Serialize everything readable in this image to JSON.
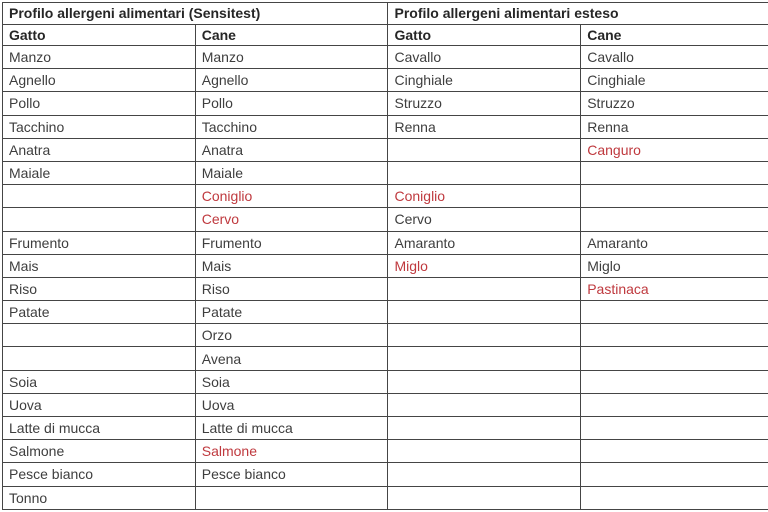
{
  "colors": {
    "red_text": "#bf393e",
    "body_text": "#3e3e3e",
    "header_text": "#262626",
    "border": "#454545",
    "background": "#ffffff"
  },
  "table": {
    "sections": [
      {
        "title": "Profilo allergeni alimentari (Sensitest)",
        "columns": [
          "Gatto",
          "Cane"
        ]
      },
      {
        "title": "Profilo allergeni alimentari esteso",
        "columns": [
          "Gatto",
          "Cane"
        ]
      }
    ],
    "rows": [
      {
        "cells": [
          {
            "text": "Manzo",
            "red": false
          },
          {
            "text": "Manzo",
            "red": false
          },
          {
            "text": "Cavallo",
            "red": false
          },
          {
            "text": "Cavallo",
            "red": false
          }
        ]
      },
      {
        "cells": [
          {
            "text": "Agnello",
            "red": false
          },
          {
            "text": "Agnello",
            "red": false
          },
          {
            "text": "Cinghiale",
            "red": false
          },
          {
            "text": "Cinghiale",
            "red": false
          }
        ]
      },
      {
        "cells": [
          {
            "text": "Pollo",
            "red": false
          },
          {
            "text": "Pollo",
            "red": false
          },
          {
            "text": "Struzzo",
            "red": false
          },
          {
            "text": "Struzzo",
            "red": false
          }
        ]
      },
      {
        "cells": [
          {
            "text": "Tacchino",
            "red": false
          },
          {
            "text": "Tacchino",
            "red": false
          },
          {
            "text": "Renna",
            "red": false
          },
          {
            "text": "Renna",
            "red": false
          }
        ]
      },
      {
        "cells": [
          {
            "text": "Anatra",
            "red": false
          },
          {
            "text": "Anatra",
            "red": false
          },
          {
            "text": "",
            "red": false
          },
          {
            "text": "Canguro",
            "red": true
          }
        ]
      },
      {
        "cells": [
          {
            "text": "Maiale",
            "red": false
          },
          {
            "text": "Maiale",
            "red": false
          },
          {
            "text": "",
            "red": false
          },
          {
            "text": "",
            "red": false
          }
        ]
      },
      {
        "cells": [
          {
            "text": "",
            "red": false
          },
          {
            "text": "Coniglio",
            "red": true
          },
          {
            "text": "Coniglio",
            "red": true
          },
          {
            "text": "",
            "red": false
          }
        ]
      },
      {
        "cells": [
          {
            "text": "",
            "red": false
          },
          {
            "text": "Cervo",
            "red": true
          },
          {
            "text": "Cervo",
            "red": false
          },
          {
            "text": "",
            "red": false
          }
        ]
      },
      {
        "cells": [
          {
            "text": "Frumento",
            "red": false
          },
          {
            "text": "Frumento",
            "red": false
          },
          {
            "text": "Amaranto",
            "red": false
          },
          {
            "text": "Amaranto",
            "red": false
          }
        ]
      },
      {
        "cells": [
          {
            "text": "Mais",
            "red": false
          },
          {
            "text": "Mais",
            "red": false
          },
          {
            "text": "Miglo",
            "red": true
          },
          {
            "text": "Miglo",
            "red": false
          }
        ]
      },
      {
        "cells": [
          {
            "text": "Riso",
            "red": false
          },
          {
            "text": "Riso",
            "red": false
          },
          {
            "text": "",
            "red": false
          },
          {
            "text": "Pastinaca",
            "red": true
          }
        ]
      },
      {
        "cells": [
          {
            "text": "Patate",
            "red": false
          },
          {
            "text": "Patate",
            "red": false
          },
          {
            "text": "",
            "red": false
          },
          {
            "text": "",
            "red": false
          }
        ]
      },
      {
        "cells": [
          {
            "text": "",
            "red": false
          },
          {
            "text": "Orzo",
            "red": false
          },
          {
            "text": "",
            "red": false
          },
          {
            "text": "",
            "red": false
          }
        ]
      },
      {
        "cells": [
          {
            "text": "",
            "red": false
          },
          {
            "text": "Avena",
            "red": false
          },
          {
            "text": "",
            "red": false
          },
          {
            "text": "",
            "red": false
          }
        ]
      },
      {
        "cells": [
          {
            "text": "Soia",
            "red": false
          },
          {
            "text": "Soia",
            "red": false
          },
          {
            "text": "",
            "red": false
          },
          {
            "text": "",
            "red": false
          }
        ]
      },
      {
        "cells": [
          {
            "text": "Uova",
            "red": false
          },
          {
            "text": "Uova",
            "red": false
          },
          {
            "text": "",
            "red": false
          },
          {
            "text": "",
            "red": false
          }
        ]
      },
      {
        "cells": [
          {
            "text": "Latte di mucca",
            "red": false
          },
          {
            "text": "Latte di mucca",
            "red": false
          },
          {
            "text": "",
            "red": false
          },
          {
            "text": "",
            "red": false
          }
        ]
      },
      {
        "cells": [
          {
            "text": "Salmone",
            "red": false
          },
          {
            "text": "Salmone",
            "red": true
          },
          {
            "text": "",
            "red": false
          },
          {
            "text": "",
            "red": false
          }
        ]
      },
      {
        "cells": [
          {
            "text": "Pesce bianco",
            "red": false
          },
          {
            "text": "Pesce bianco",
            "red": false
          },
          {
            "text": "",
            "red": false
          },
          {
            "text": "",
            "red": false
          }
        ]
      },
      {
        "cells": [
          {
            "text": "Tonno",
            "red": false
          },
          {
            "text": "",
            "red": false
          },
          {
            "text": "",
            "red": false
          },
          {
            "text": "",
            "red": false
          }
        ]
      }
    ]
  }
}
